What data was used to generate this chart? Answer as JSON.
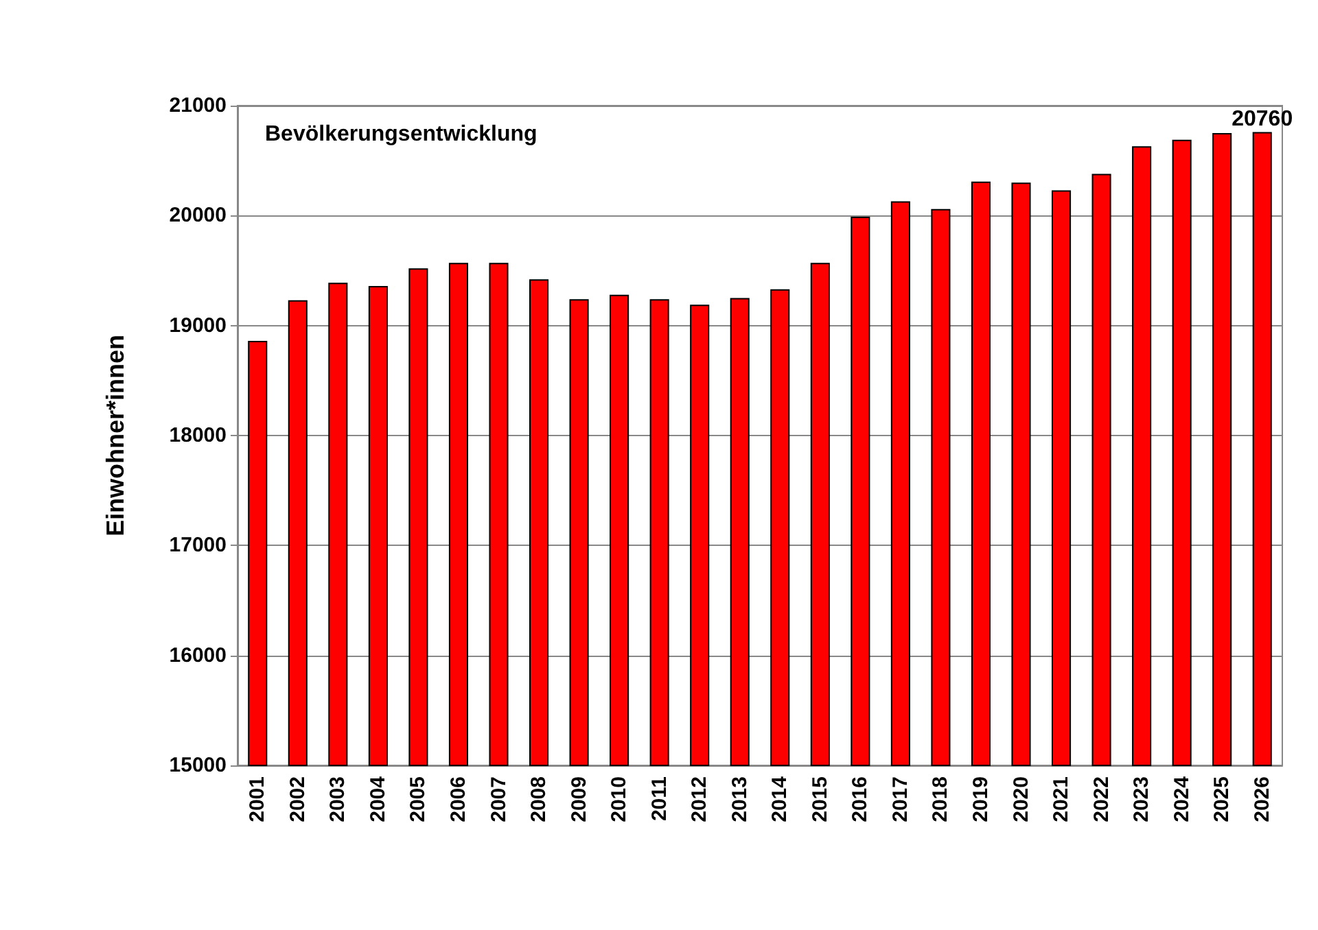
{
  "chart_data": {
    "type": "bar",
    "title": "Bevölkerungsentwicklung",
    "ylabel": "Einwohner*innen",
    "categories": [
      "2001",
      "2002",
      "2003",
      "2004",
      "2005",
      "2006",
      "2007",
      "2008",
      "2009",
      "2010",
      "2011",
      "2012",
      "2013",
      "2014",
      "2015",
      "2016",
      "2017",
      "2018",
      "2019",
      "2020",
      "2021",
      "2022",
      "2023",
      "2024",
      "2025",
      "2026"
    ],
    "values": [
      18860,
      19230,
      19390,
      19360,
      19520,
      19570,
      19570,
      19420,
      19240,
      19280,
      19240,
      19190,
      19250,
      19330,
      19570,
      19990,
      20130,
      20060,
      20310,
      20300,
      20230,
      20380,
      20630,
      20690,
      20750,
      20760
    ],
    "value_labels": [
      null,
      null,
      null,
      null,
      null,
      null,
      null,
      null,
      null,
      null,
      null,
      null,
      null,
      null,
      null,
      null,
      null,
      null,
      null,
      null,
      null,
      null,
      null,
      null,
      null,
      "20760"
    ],
    "color": "#ff0000",
    "ylim": [
      15000,
      21000
    ],
    "yticks": [
      15000,
      16000,
      17000,
      18000,
      19000,
      20000,
      21000
    ],
    "grid": "y"
  }
}
